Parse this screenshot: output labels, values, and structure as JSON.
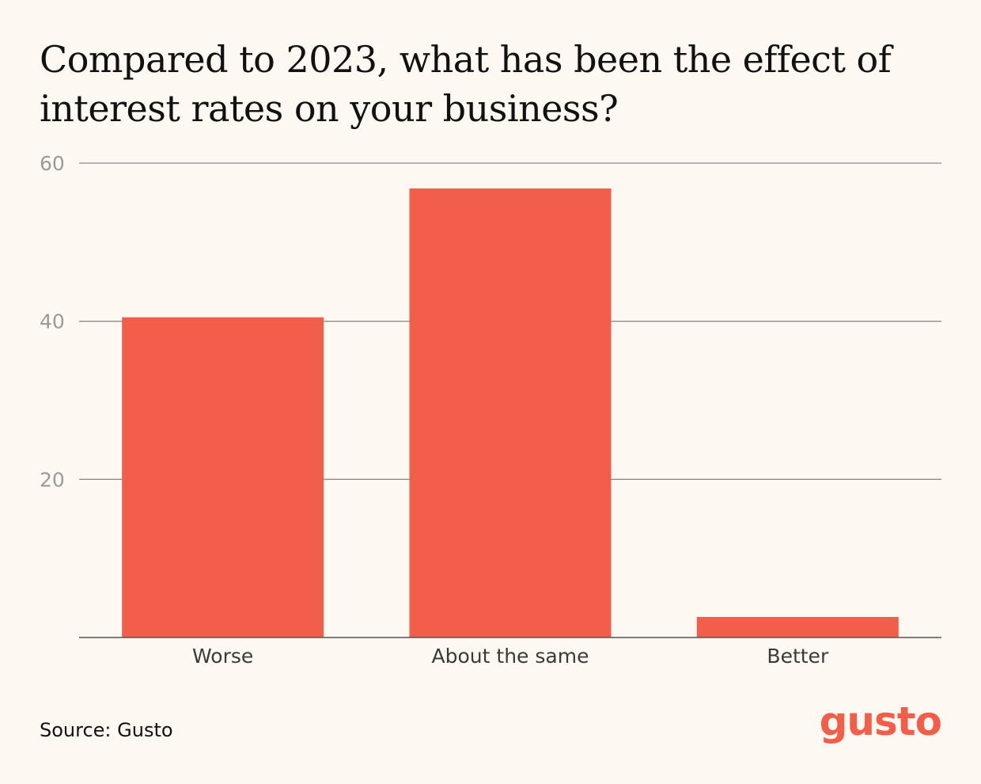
{
  "chart_data": {
    "type": "bar",
    "title": "Compared to 2023, what has been the effect of interest rates on your business?",
    "categories": [
      "Worse",
      "About the same",
      "Better"
    ],
    "values": [
      40.5,
      56.8,
      2.6
    ],
    "xlabel": "",
    "ylabel": "",
    "ylim": [
      0,
      60
    ],
    "yticks": [
      20,
      40,
      60
    ],
    "grid": true,
    "bar_color": "#F15F4A"
  },
  "footer": {
    "source": "Source: Gusto",
    "logo": "gusto"
  },
  "colors": {
    "background": "#FDF8F1",
    "bar": "#F15F4A",
    "gridline": "#8C8C8C",
    "axis": "#555555",
    "brand": "#F15F4A"
  }
}
